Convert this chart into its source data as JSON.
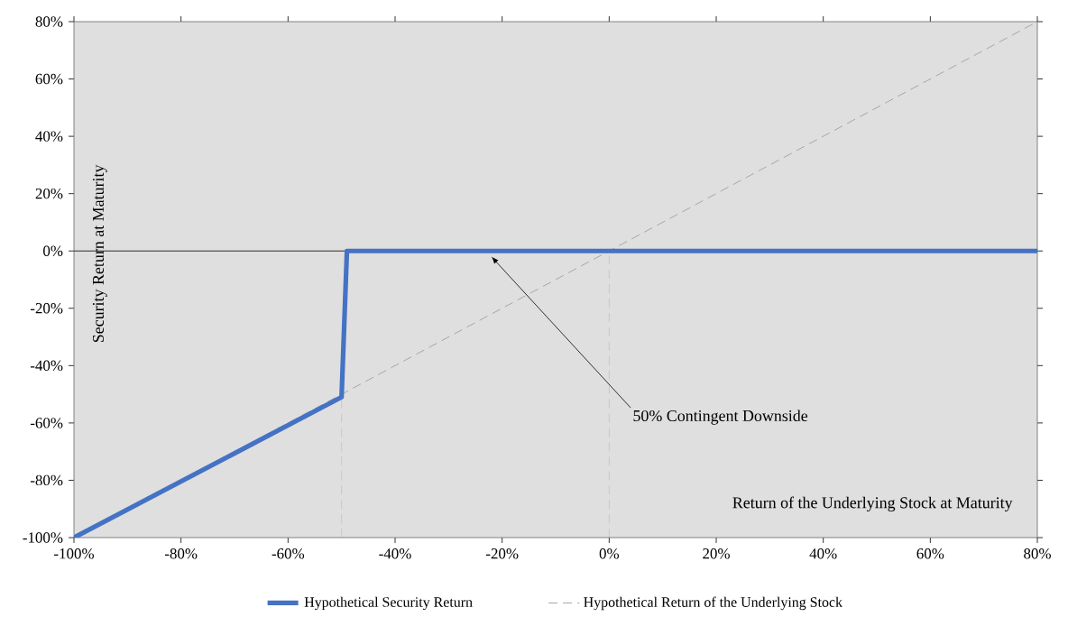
{
  "chart_data": {
    "type": "line",
    "xlabel": "Return of the Underlying Stock at Maturity",
    "ylabel": "Security Return at Maturity",
    "xlim": [
      -100,
      80
    ],
    "ylim": [
      -100,
      80
    ],
    "xticks": [
      {
        "value": -100,
        "label": "-100%"
      },
      {
        "value": -80,
        "label": "-80%"
      },
      {
        "value": -60,
        "label": "-60%"
      },
      {
        "value": -40,
        "label": "-40%"
      },
      {
        "value": -20,
        "label": "-20%"
      },
      {
        "value": 0,
        "label": "0%"
      },
      {
        "value": 20,
        "label": "20%"
      },
      {
        "value": 40,
        "label": "40%"
      },
      {
        "value": 60,
        "label": "60%"
      },
      {
        "value": 80,
        "label": "80%"
      }
    ],
    "yticks": [
      {
        "value": -100,
        "label": "-100%"
      },
      {
        "value": -80,
        "label": "-80%"
      },
      {
        "value": -60,
        "label": "-60%"
      },
      {
        "value": -40,
        "label": "-40%"
      },
      {
        "value": -20,
        "label": "-20%"
      },
      {
        "value": 0,
        "label": "0%"
      },
      {
        "value": 20,
        "label": "20%"
      },
      {
        "value": 40,
        "label": "40%"
      },
      {
        "value": 60,
        "label": "60%"
      },
      {
        "value": 80,
        "label": "80%"
      }
    ],
    "series": [
      {
        "name": "Hypothetical Security Return",
        "color": "#4472c4",
        "x": [
          -100,
          -50,
          -49,
          80
        ],
        "values": [
          -100,
          -51,
          0,
          0
        ],
        "line_style": "solid"
      },
      {
        "name": "Hypothetical Return of the Underlying Stock",
        "color": "#a6a6a6",
        "x": [
          -100,
          80
        ],
        "values": [
          -100,
          80
        ],
        "line_style": "dashed"
      }
    ],
    "ref_lines": [
      {
        "axis": "y",
        "value": 0,
        "color": "#000000",
        "line_style": "solid"
      },
      {
        "axis": "x",
        "value": -50,
        "color": "#a6a6a6",
        "line_style": "dashed"
      },
      {
        "axis": "x",
        "value": 0,
        "color": "#a6a6a6",
        "line_style": "dashed"
      }
    ],
    "annotations": [
      {
        "text": "50% Contingent Downside",
        "x": -22,
        "y": 0
      }
    ],
    "legend": "bottom",
    "marker": "none",
    "grid": false
  }
}
